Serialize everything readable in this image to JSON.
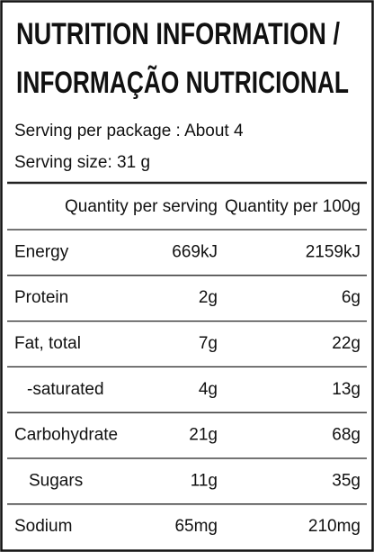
{
  "header": {
    "title_lines": [
      "NUTRITION INFORMATION /",
      "INFORMAÇÃO NUTRICIONAL"
    ],
    "serving_per_package": "Serving per package : About 4",
    "serving_size": "Serving size: 31 g"
  },
  "table": {
    "columns": [
      "Quantity per serving",
      "Quantity per 100g"
    ],
    "rows": [
      [
        "Energy",
        "669kJ",
        "2159kJ"
      ],
      [
        "Protein",
        "2g",
        "6g"
      ],
      [
        "Fat, total",
        "7g",
        "22g"
      ],
      [
        "-saturated",
        "4g",
        "13g"
      ],
      [
        "Carbohydrate",
        "21g",
        "68g"
      ],
      [
        "Sugars",
        "11g",
        "35g"
      ],
      [
        "Sodium",
        "65mg",
        "210mg"
      ]
    ]
  }
}
